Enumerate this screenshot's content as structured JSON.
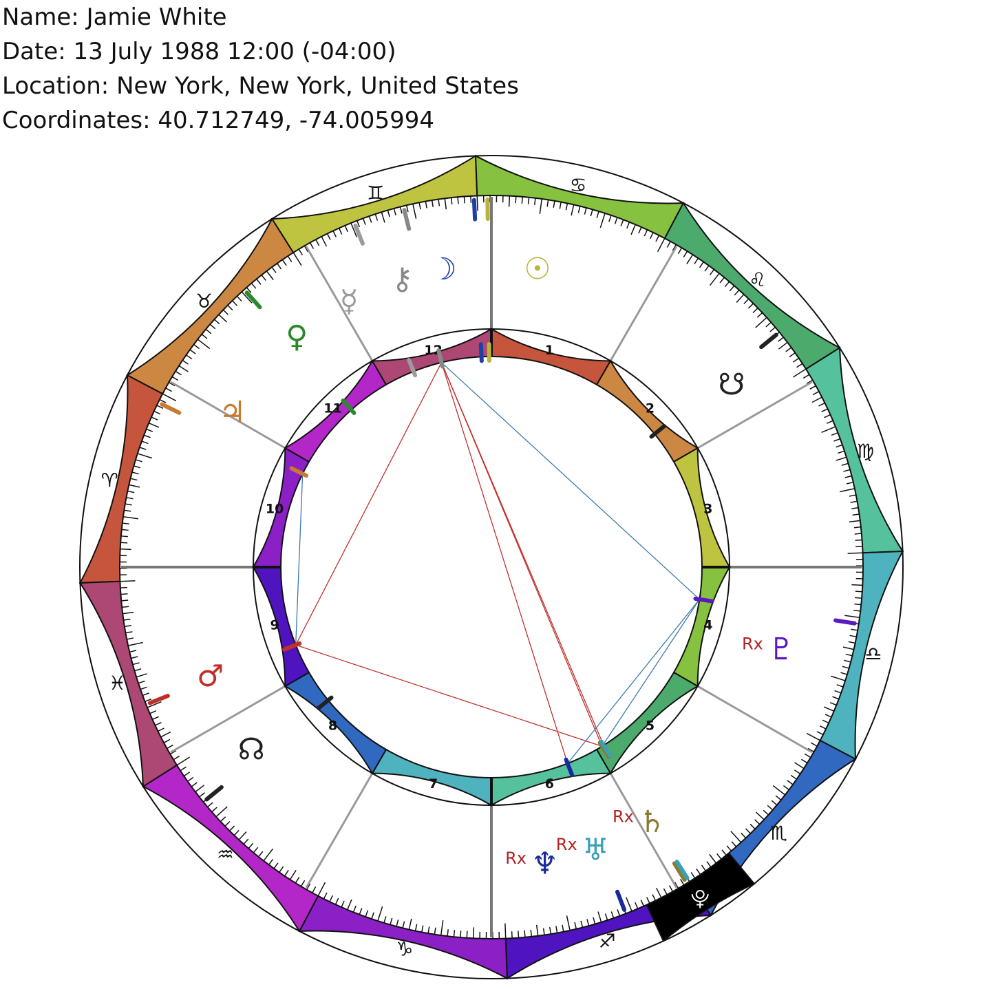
{
  "info": {
    "name": "Name: Jamie White",
    "date": "Date: 13 July 1988 12:00 (-04:00)",
    "location": "Location: New York, New York, United States",
    "coordinates": "Coordinates: 40.712749, -74.005994"
  },
  "ascendant": 2.2,
  "signs": [
    {
      "name": "Aries",
      "glyph": "♈",
      "color": "#c5553c"
    },
    {
      "name": "Taurus",
      "glyph": "♉",
      "color": "#cc8843"
    },
    {
      "name": "Gemini",
      "glyph": "♊",
      "color": "#bec440"
    },
    {
      "name": "Cancer",
      "glyph": "♋",
      "color": "#86c13f"
    },
    {
      "name": "Leo",
      "glyph": "♌",
      "color": "#4caa6c"
    },
    {
      "name": "Virgo",
      "glyph": "♍",
      "color": "#55c29d"
    },
    {
      "name": "Libra",
      "glyph": "♎",
      "color": "#4fb3bf"
    },
    {
      "name": "Scorpio",
      "glyph": "♏",
      "color": "#3168c0"
    },
    {
      "name": "Sagittarius",
      "glyph": "♐",
      "color": "#4f14c0"
    },
    {
      "name": "Capricorn",
      "glyph": "♑",
      "color": "#8a20c5"
    },
    {
      "name": "Aquarius",
      "glyph": "♒",
      "color": "#b327c8"
    },
    {
      "name": "Pisces",
      "glyph": "♓",
      "color": "#ad4774"
    }
  ],
  "houses": [
    {
      "num": "1",
      "cusp": 92.2,
      "color": "#c5553c"
    },
    {
      "num": "2",
      "cusp": 122.2,
      "color": "#cc8843"
    },
    {
      "num": "3",
      "cusp": 152.2,
      "color": "#bec440"
    },
    {
      "num": "4",
      "cusp": 182.2,
      "color": "#86c13f"
    },
    {
      "num": "5",
      "cusp": 212.2,
      "color": "#4caa6c"
    },
    {
      "num": "6",
      "cusp": 242.2,
      "color": "#55c29d"
    },
    {
      "num": "7",
      "cusp": 272.2,
      "color": "#4fb3bf"
    },
    {
      "num": "8",
      "cusp": 302.2,
      "color": "#3168c0"
    },
    {
      "num": "9",
      "cusp": 332.2,
      "color": "#4f14c0"
    },
    {
      "num": "10",
      "cusp": 2.2,
      "color": "#8a20c5"
    },
    {
      "num": "11",
      "cusp": 32.2,
      "color": "#b327c8"
    },
    {
      "num": "12",
      "cusp": 62.2,
      "color": "#ad4774"
    }
  ],
  "planets": [
    {
      "name": "Sun",
      "glyph": "☉",
      "lon": 91.6,
      "glyph_lon": 101,
      "color": "#b9b43c",
      "retro": false
    },
    {
      "name": "Moon",
      "glyph": "☽",
      "lon": 89.5,
      "glyph_lon": 83,
      "color": "#1f3fa8",
      "retro": false
    },
    {
      "name": "Mercury",
      "glyph": "☿",
      "lon": 70.5,
      "glyph_lon": 64,
      "color": "#9b9b9b",
      "retro": false
    },
    {
      "name": "Venus",
      "glyph": "♀",
      "lon": 50.5,
      "glyph_lon": 52,
      "color": "#2a8a2a",
      "retro": false
    },
    {
      "name": "Mars",
      "glyph": "♂",
      "lon": 340.5,
      "glyph_lon": 341,
      "color": "#c0302a",
      "retro": false
    },
    {
      "name": "Jupiter",
      "glyph": "♃",
      "lon": 28.5,
      "glyph_lon": 33,
      "color": "#c77a30",
      "retro": false
    },
    {
      "name": "Saturn",
      "glyph": "♄",
      "lon": 240.5,
      "glyph_lon": 240,
      "color": "#8a7a30",
      "retro": true
    },
    {
      "name": "Uranus",
      "glyph": "♅",
      "lon": 240.0,
      "glyph_lon": 252,
      "color": "#3aa0b8",
      "retro": true
    },
    {
      "name": "Neptune",
      "glyph": "♆",
      "lon": 251.0,
      "glyph_lon": 262,
      "color": "#1a2a9a",
      "retro": true
    },
    {
      "name": "Pluto",
      "glyph": "♇",
      "lon": 191.0,
      "glyph_lon": 198,
      "color": "#5a1ac0",
      "retro": true
    },
    {
      "name": "North Node",
      "glyph": "☊",
      "lon": 323.0,
      "glyph_lon": 325,
      "color": "#222222",
      "retro": false
    },
    {
      "name": "South Node",
      "glyph": "☋",
      "lon": 143.0,
      "glyph_lon": 145,
      "color": "#222222",
      "retro": false
    },
    {
      "name": "Chiron",
      "glyph": "⚷",
      "lon": 78.5,
      "glyph_lon": 75,
      "color": "#888888",
      "retro": false
    }
  ],
  "lilith": {
    "glyph": "⯓",
    "lon": 240.0,
    "color": "#000000"
  },
  "rx_label": "Rx",
  "aspects": [
    {
      "a": "Chiron",
      "b": "Mars",
      "color": "#c0302a"
    },
    {
      "a": "Chiron",
      "b": "Saturn",
      "color": "#c0302a"
    },
    {
      "a": "Chiron",
      "b": "Uranus",
      "color": "#c0302a"
    },
    {
      "a": "Chiron",
      "b": "Neptune",
      "color": "#c0302a"
    },
    {
      "a": "Mars",
      "b": "Saturn",
      "color": "#c0302a"
    },
    {
      "a": "Chiron",
      "b": "Pluto",
      "color": "#3a78b0"
    },
    {
      "a": "Jupiter",
      "b": "Mars",
      "color": "#3a78b0"
    },
    {
      "a": "Pluto",
      "b": "Saturn",
      "color": "#3a78b0"
    },
    {
      "a": "Pluto",
      "b": "Neptune",
      "color": "#3a78b0"
    }
  ]
}
